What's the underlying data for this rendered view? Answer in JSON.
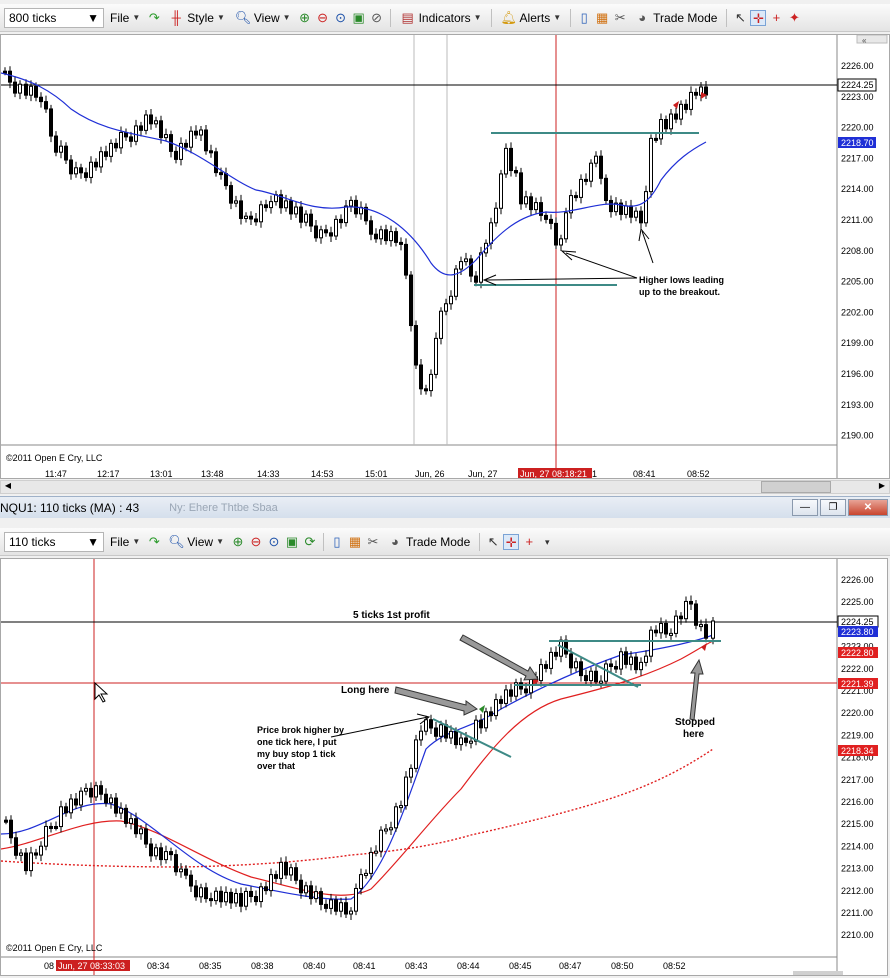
{
  "top": {
    "toolbar": {
      "ticks_select": "800 ticks",
      "file": "File",
      "style": "Style",
      "view": "View",
      "indicators": "Indicators",
      "alerts": "Alerts",
      "trade_mode": "Trade Mode"
    },
    "price_labels": [
      "2226.00",
      "2223.00",
      "2220.00",
      "2217.00",
      "2214.00",
      "2211.00",
      "2208.00",
      "2205.00",
      "2202.00",
      "2199.00",
      "2196.00",
      "2193.00",
      "2190.00"
    ],
    "current_price": "2224.25",
    "ma_price": "2218.70",
    "time_labels": [
      "11:47",
      "12:17",
      "13:01",
      "13:48",
      "14:33",
      "14:53",
      "15:01",
      "Jun, 26",
      "Jun, 27",
      "08:41",
      "08:52"
    ],
    "cursor_time": "Jun, 27 08:18:21",
    "cursor_time_suffix": "1",
    "copyright": "©2011 Open E Cry, LLC",
    "annotation_line1": "Higher lows leading",
    "annotation_line2": "up to the breakout."
  },
  "bottom": {
    "title": "NQU1: 110 ticks (MA) : 43",
    "title_ghost": "Ny: Ehere Thtbe Sbaa",
    "toolbar": {
      "ticks_select": "110 ticks",
      "file": "File",
      "view": "View",
      "trade_mode": "Trade Mode"
    },
    "price_labels": [
      "2226.00",
      "2225.00",
      "2224.00",
      "2223.00",
      "2222.00",
      "2221.00",
      "2220.00",
      "2219.00",
      "2218.00",
      "2217.00",
      "2216.00",
      "2215.00",
      "2214.00",
      "2213.00",
      "2212.00",
      "2211.00",
      "2210.00"
    ],
    "label_current": "2224.25",
    "label_blue": "2223.80",
    "label_red1": "2222.80",
    "label_red2": "2221.39",
    "label_red3": "2218.34",
    "time_prefix": "08",
    "cursor_time": "Jun, 27 08:33:03",
    "time_labels": [
      "08:34",
      "08:35",
      "08:38",
      "08:40",
      "08:41",
      "08:43",
      "08:44",
      "08:45",
      "08:47",
      "08:50",
      "08:52"
    ],
    "copyright": "©2011 Open E Cry, LLC",
    "note_profit": "5 ticks 1st profit",
    "note_long": "Long here",
    "note_price_1": "Price brok higher by",
    "note_price_2": "one tick here, I put",
    "note_price_3": "my buy stop 1 tick",
    "note_price_4": "over that",
    "note_stopped_1": "Stopped",
    "note_stopped_2": "here"
  },
  "colors": {
    "ma_blue": "#1f2fd6",
    "ma_red": "#e02020",
    "level": "#3d8a86",
    "cursor": "#cc2020",
    "candle": "#000000"
  }
}
